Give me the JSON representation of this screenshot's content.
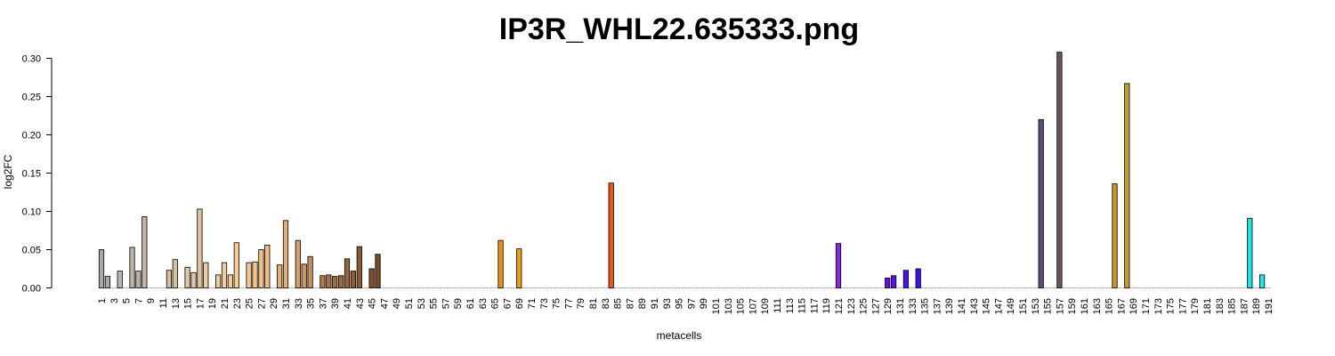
{
  "chart_data": {
    "type": "bar",
    "title": "IP3R_WHL22.635333.png",
    "xlabel": "metacells",
    "ylabel": "log2FC",
    "ylim": [
      0,
      0.3
    ],
    "yticks": [
      "0.00",
      "0.05",
      "0.10",
      "0.15",
      "0.20",
      "0.25",
      "0.30"
    ],
    "n_categories": 191,
    "grid": false,
    "legend": "none",
    "bars": [
      {
        "x": 1,
        "value": 0.05,
        "color": "#a9a9a9"
      },
      {
        "x": 2,
        "value": 0.015,
        "color": "#a9a9a9"
      },
      {
        "x": 4,
        "value": 0.022,
        "color": "#b9b6b2"
      },
      {
        "x": 6,
        "value": 0.053,
        "color": "#bcb3a8"
      },
      {
        "x": 7,
        "value": 0.022,
        "color": "#bcb3a8"
      },
      {
        "x": 8,
        "value": 0.093,
        "color": "#c0b5a6"
      },
      {
        "x": 12,
        "value": 0.023,
        "color": "#d2bfa3"
      },
      {
        "x": 13,
        "value": 0.037,
        "color": "#d6c0a0"
      },
      {
        "x": 15,
        "value": 0.027,
        "color": "#dcc6a6"
      },
      {
        "x": 16,
        "value": 0.02,
        "color": "#dcc6a6"
      },
      {
        "x": 17,
        "value": 0.103,
        "color": "#e0c39c"
      },
      {
        "x": 18,
        "value": 0.033,
        "color": "#e9cca4"
      },
      {
        "x": 20,
        "value": 0.017,
        "color": "#f0cda0"
      },
      {
        "x": 21,
        "value": 0.033,
        "color": "#f2cc9a"
      },
      {
        "x": 22,
        "value": 0.017,
        "color": "#f5cc96"
      },
      {
        "x": 23,
        "value": 0.059,
        "color": "#f7c993"
      },
      {
        "x": 25,
        "value": 0.033,
        "color": "#f6c68f"
      },
      {
        "x": 26,
        "value": 0.034,
        "color": "#f5c48b"
      },
      {
        "x": 27,
        "value": 0.05,
        "color": "#f3c086"
      },
      {
        "x": 28,
        "value": 0.056,
        "color": "#efbd85"
      },
      {
        "x": 30,
        "value": 0.03,
        "color": "#e4b27d"
      },
      {
        "x": 31,
        "value": 0.088,
        "color": "#dfae79"
      },
      {
        "x": 33,
        "value": 0.062,
        "color": "#d79f6c"
      },
      {
        "x": 34,
        "value": 0.031,
        "color": "#cf9562"
      },
      {
        "x": 35,
        "value": 0.041,
        "color": "#c98f5d"
      },
      {
        "x": 37,
        "value": 0.016,
        "color": "#b27a4d"
      },
      {
        "x": 38,
        "value": 0.017,
        "color": "#a97247"
      },
      {
        "x": 39,
        "value": 0.015,
        "color": "#a06b42"
      },
      {
        "x": 40,
        "value": 0.016,
        "color": "#9c6a43"
      },
      {
        "x": 41,
        "value": 0.038,
        "color": "#966540"
      },
      {
        "x": 42,
        "value": 0.022,
        "color": "#8f5d38"
      },
      {
        "x": 43,
        "value": 0.054,
        "color": "#8c5a34"
      },
      {
        "x": 45,
        "value": 0.025,
        "color": "#7f4f2a"
      },
      {
        "x": 46,
        "value": 0.044,
        "color": "#7a4a24"
      },
      {
        "x": 66,
        "value": 0.062,
        "color": "#e8910f"
      },
      {
        "x": 69,
        "value": 0.051,
        "color": "#efa010"
      },
      {
        "x": 84,
        "value": 0.137,
        "color": "#f0521c"
      },
      {
        "x": 121,
        "value": 0.058,
        "color": "#8a2be2"
      },
      {
        "x": 129,
        "value": 0.013,
        "color": "#6a0ee0"
      },
      {
        "x": 130,
        "value": 0.016,
        "color": "#5a10e6"
      },
      {
        "x": 132,
        "value": 0.023,
        "color": "#4b12ea"
      },
      {
        "x": 134,
        "value": 0.025,
        "color": "#3b12ee"
      },
      {
        "x": 154,
        "value": 0.22,
        "color": "#5e4b7d"
      },
      {
        "x": 157,
        "value": 0.308,
        "color": "#6b5361"
      },
      {
        "x": 166,
        "value": 0.136,
        "color": "#c8962a"
      },
      {
        "x": 168,
        "value": 0.267,
        "color": "#bfa02c"
      },
      {
        "x": 188,
        "value": 0.091,
        "color": "#21e4e4"
      },
      {
        "x": 190,
        "value": 0.017,
        "color": "#21e7e7"
      }
    ]
  }
}
